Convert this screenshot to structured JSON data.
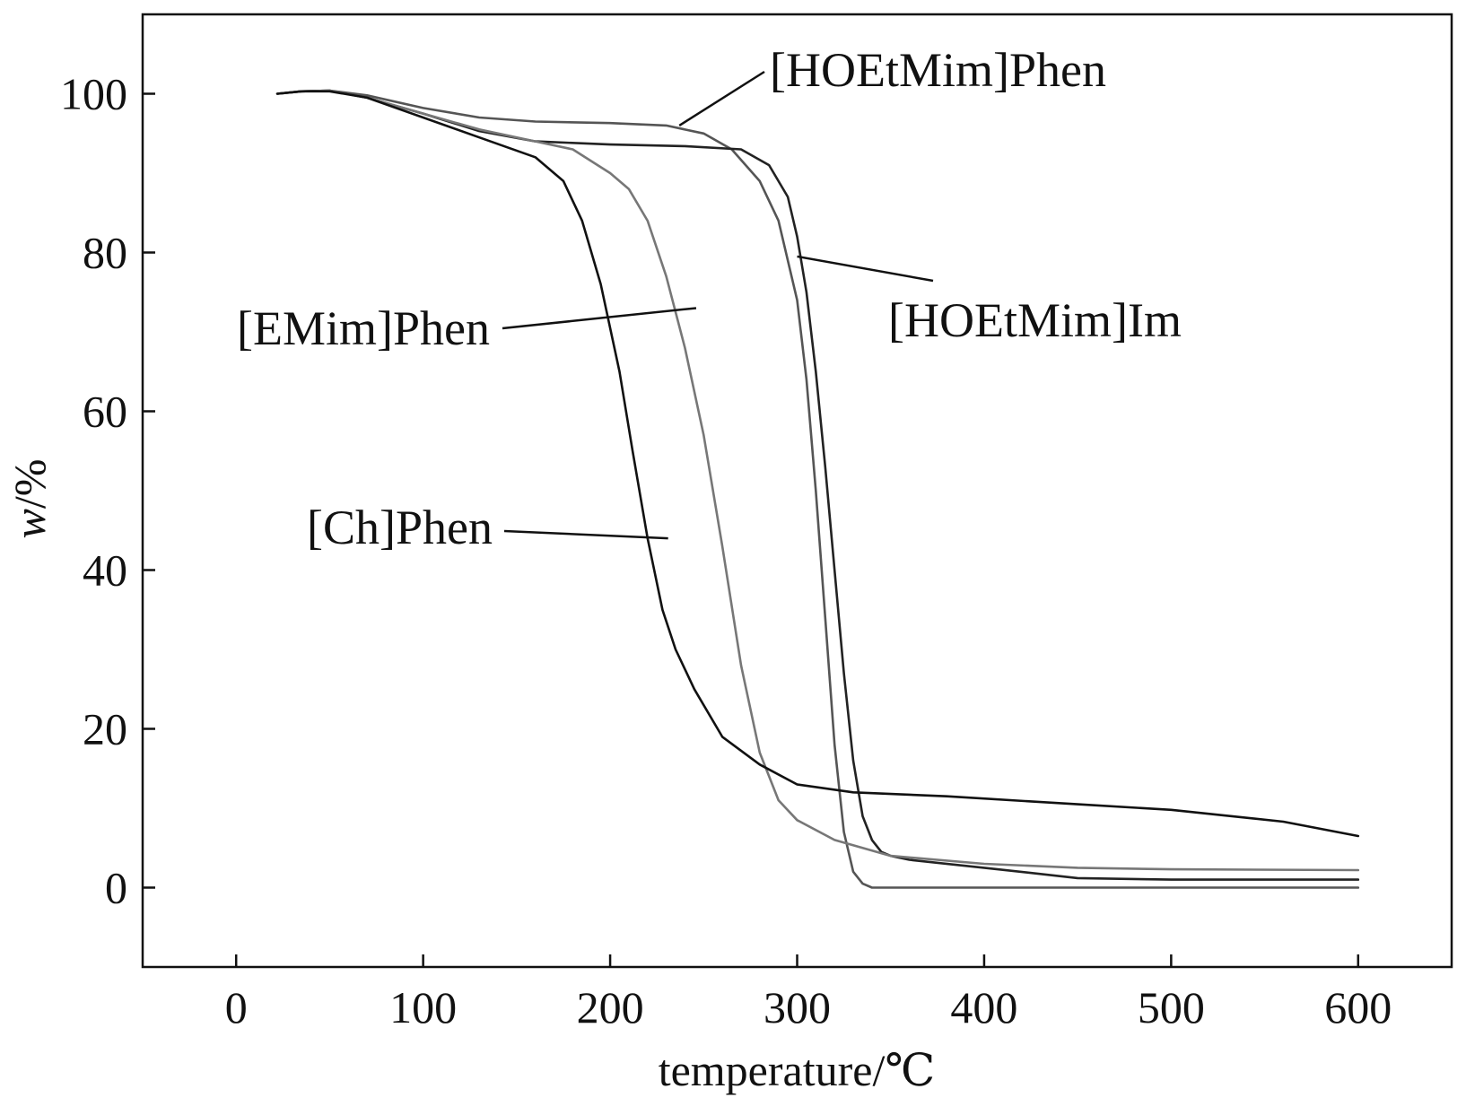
{
  "chart_data": {
    "type": "line",
    "title": "",
    "xlabel": "temperature/℃",
    "ylabel_italic": "w",
    "ylabel_rest": "/%",
    "xlim": [
      -50,
      650
    ],
    "ylim": [
      -10,
      110
    ],
    "xticks": [
      0,
      100,
      200,
      300,
      400,
      500,
      600
    ],
    "yticks": [
      0,
      20,
      40,
      60,
      80,
      100
    ],
    "grid": false,
    "legend": "none (labels with leader lines)",
    "series": [
      {
        "name": "[HOEtMim]Phen",
        "color": "#555555",
        "x": [
          22,
          35,
          50,
          70,
          100,
          130,
          160,
          200,
          230,
          250,
          265,
          280,
          290,
          300,
          305,
          310,
          315,
          320,
          325,
          330,
          335,
          340,
          350,
          400,
          500,
          600
        ],
        "y": [
          100,
          100.3,
          100.4,
          99.8,
          98.2,
          97,
          96.5,
          96.3,
          96,
          95,
          93,
          89,
          84,
          74,
          64,
          50,
          34,
          18,
          7,
          2,
          0.5,
          0,
          0,
          0,
          0,
          0
        ]
      },
      {
        "name": "[HOEtMim]Im",
        "color": "#222222",
        "x": [
          22,
          35,
          50,
          70,
          100,
          130,
          160,
          200,
          240,
          270,
          285,
          295,
          300,
          305,
          310,
          315,
          320,
          325,
          330,
          335,
          340,
          345,
          350,
          360,
          400,
          450,
          500,
          600
        ],
        "y": [
          100,
          100.3,
          100.4,
          99.5,
          97.5,
          95.3,
          94,
          93.6,
          93.4,
          93,
          91,
          87,
          82,
          75,
          65,
          53,
          40,
          27,
          16,
          9,
          6,
          4.5,
          4,
          3.5,
          2.5,
          1.2,
          1,
          1
        ]
      },
      {
        "name": "[EMim]Phen",
        "color": "#777777",
        "x": [
          22,
          35,
          50,
          70,
          100,
          130,
          160,
          180,
          200,
          210,
          220,
          230,
          240,
          250,
          260,
          270,
          280,
          290,
          300,
          320,
          350,
          400,
          450,
          500,
          600
        ],
        "y": [
          100,
          100.3,
          100.4,
          99.5,
          97.5,
          95.5,
          94,
          93,
          90,
          88,
          84,
          77,
          68,
          57,
          43,
          28,
          17,
          11,
          8.5,
          6,
          4,
          3,
          2.5,
          2.3,
          2.2
        ]
      },
      {
        "name": "[Ch]Phen",
        "color": "#111111",
        "x": [
          22,
          35,
          50,
          70,
          100,
          130,
          160,
          175,
          185,
          195,
          205,
          212,
          220,
          228,
          235,
          245,
          260,
          280,
          300,
          330,
          380,
          450,
          500,
          560,
          600
        ],
        "y": [
          100,
          100.3,
          100.3,
          99.5,
          97,
          94.5,
          92,
          89,
          84,
          76,
          65,
          55,
          44,
          35,
          30,
          25,
          19,
          15.5,
          13,
          12,
          11.5,
          10.5,
          9.8,
          8.3,
          6.5
        ]
      }
    ],
    "annotations": [
      {
        "series": "[HOEtMim]Phen",
        "text": "[HOEtMim]Phen",
        "at_x": 237,
        "at_y": 96
      },
      {
        "series": "[HOEtMim]Im",
        "text": "[HOEtMim]Im",
        "at_x": 300,
        "at_y": 79.5
      },
      {
        "series": "[EMim]Phen",
        "text": "[EMim]Phen",
        "at_x": 246,
        "at_y": 73
      },
      {
        "series": "[Ch]Phen",
        "text": "[Ch]Phen",
        "at_x": 231,
        "at_y": 44
      }
    ]
  }
}
